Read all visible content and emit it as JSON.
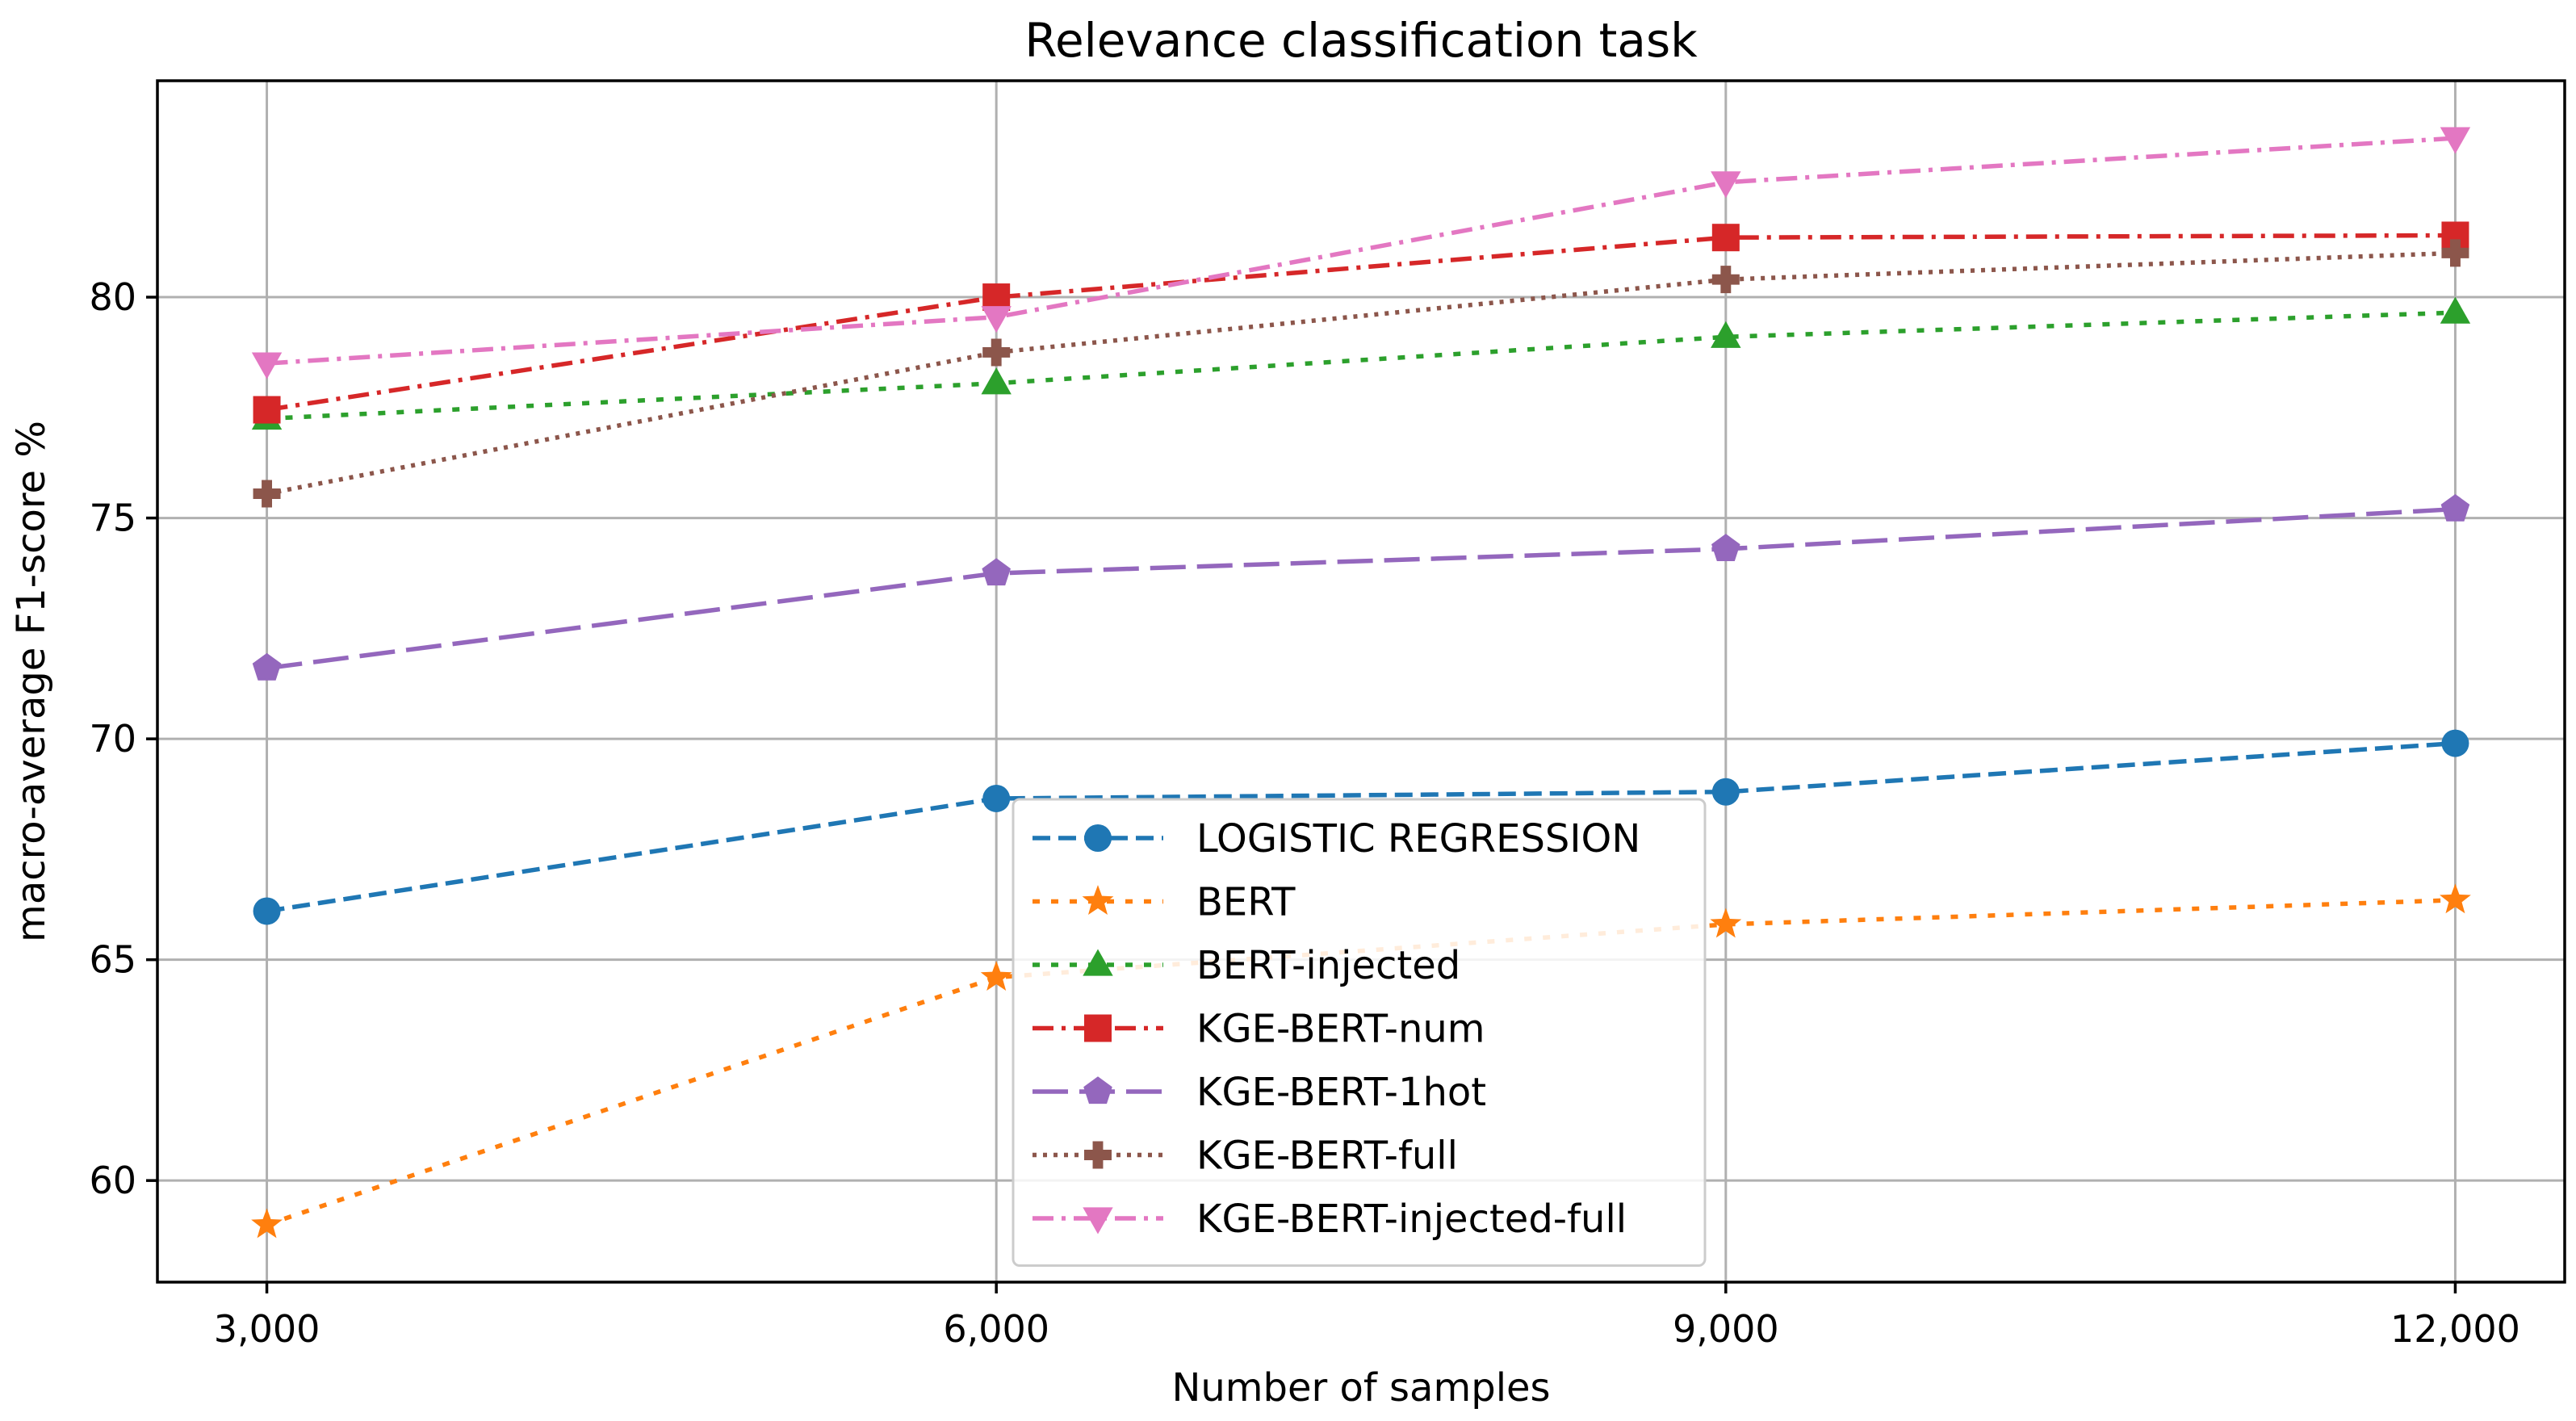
{
  "chart_data": {
    "type": "line",
    "title": "Relevance classification task",
    "xlabel": "Number of samples",
    "ylabel": "macro-average F1-score %",
    "x": [
      3000,
      6000,
      9000,
      12000
    ],
    "x_tick_labels": [
      "3,000",
      "6,000",
      "9,000",
      "12,000"
    ],
    "xlim": [
      2550,
      12450
    ],
    "ylim": [
      57.7,
      84.9
    ],
    "y_ticks": [
      60,
      65,
      70,
      75,
      80
    ],
    "y_tick_labels": [
      "60",
      "65",
      "70",
      "75",
      "80"
    ],
    "grid": true,
    "legend_position": "lower-center",
    "series": [
      {
        "name": "LOGISTIC REGRESSION",
        "values": [
          66.1,
          68.65,
          68.8,
          69.9
        ],
        "color": "#1f77b4",
        "linestyle": "dashed",
        "marker": "circle"
      },
      {
        "name": "BERT",
        "values": [
          59.0,
          64.6,
          65.8,
          66.35
        ],
        "color": "#ff7f0e",
        "linestyle": "dotted",
        "marker": "star"
      },
      {
        "name": "BERT-injected",
        "values": [
          77.25,
          78.05,
          79.1,
          79.65
        ],
        "color": "#2ca02c",
        "linestyle": "dotted",
        "marker": "triangle-up"
      },
      {
        "name": "KGE-BERT-num",
        "values": [
          77.45,
          80.0,
          81.35,
          81.4
        ],
        "color": "#d62728",
        "linestyle": "dashdot",
        "marker": "square"
      },
      {
        "name": "KGE-BERT-1hot",
        "values": [
          71.6,
          73.75,
          74.3,
          75.2
        ],
        "color": "#9467bd",
        "linestyle": "longdash",
        "marker": "pentagon"
      },
      {
        "name": "KGE-BERT-full",
        "values": [
          75.55,
          78.75,
          80.4,
          81.0
        ],
        "color": "#8c564b",
        "linestyle": "dotted-dense",
        "marker": "plus"
      },
      {
        "name": "KGE-BERT-injected-full",
        "values": [
          78.5,
          79.55,
          82.6,
          83.6
        ],
        "color": "#e377c2",
        "linestyle": "dashdot",
        "marker": "triangle-down"
      }
    ]
  }
}
